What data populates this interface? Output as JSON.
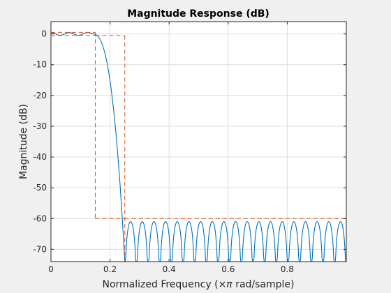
{
  "chart_data": {
    "type": "line",
    "title": "Magnitude Response (dB)",
    "xlabel": "Normalized Frequency",
    "xlabel_symbol": "×π",
    "xlabel_units": "rad/sample",
    "ylabel": "Magnitude (dB)",
    "xlim": [
      0,
      1
    ],
    "ylim": [
      -74,
      4
    ],
    "xticks": [
      0,
      0.2,
      0.4,
      0.6,
      0.8
    ],
    "xtick_labels": [
      "0",
      "0.2",
      "0.4",
      "0.6",
      "0.8"
    ],
    "yticks": [
      0,
      -10,
      -20,
      -30,
      -40,
      -50,
      -60,
      -70
    ],
    "ytick_labels": [
      "0",
      "-10",
      "-20",
      "-30",
      "-40",
      "-50",
      "-60",
      "-70"
    ],
    "grid": true,
    "series": [
      {
        "style": "solid",
        "color": "#0072bd",
        "passband": {
          "x_end": 0.14,
          "ripple_db": 0.5
        },
        "transition": {
          "x_start": 0.14,
          "x_end": 0.25,
          "y_start": 0,
          "y_end": -74
        },
        "stopband": {
          "x_start": 0.25,
          "x_end": 1.0,
          "peak_db": -61,
          "floor_db": -74,
          "lobes": 19
        }
      },
      {
        "style": "dashed",
        "color": "#d95319",
        "segments": [
          {
            "x": [
              0,
              0.15
            ],
            "y": [
              0.5,
              0.5
            ]
          },
          {
            "x": [
              0,
              0.15
            ],
            "y": [
              -0.5,
              -0.5
            ]
          },
          {
            "x": [
              0.15,
              0.15
            ],
            "y": [
              0.5,
              -60
            ]
          },
          {
            "x": [
              0.15,
              0.25
            ],
            "y": [
              -60,
              -60
            ]
          },
          {
            "x": [
              0.15,
              0.25
            ],
            "y": [
              -0.5,
              -0.5
            ]
          },
          {
            "x": [
              0.25,
              0.25
            ],
            "y": [
              -0.5,
              -74
            ]
          },
          {
            "x": [
              0.25,
              1.0
            ],
            "y": [
              -60,
              -60
            ]
          }
        ]
      }
    ]
  }
}
